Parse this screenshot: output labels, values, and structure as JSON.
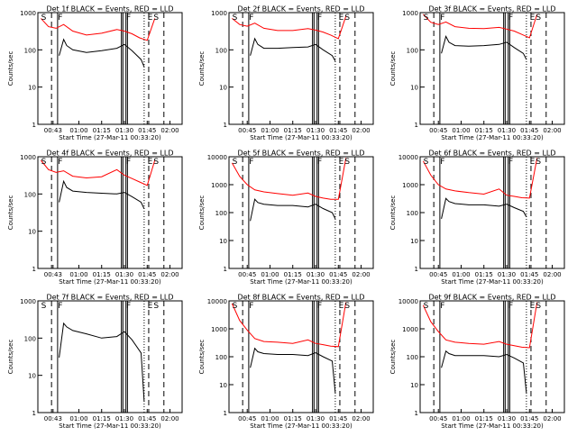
{
  "figure": {
    "ylabel": "Counts/sec",
    "xlabel": "Start Time (27-Mar-11 00:33:20)",
    "colors": {
      "events": "#000000",
      "lld": "#ff0000"
    }
  },
  "chart_data": [
    {
      "type": "line",
      "title": "Det 1f BLACK = Events, RED = LLD",
      "ylim": [
        1,
        1000
      ],
      "yscale": "log",
      "yticks": [
        "1",
        "10",
        "100",
        "1000"
      ],
      "xticks": [
        "00:43",
        "01:00",
        "01:15",
        "01:30",
        "01:45",
        "02:00"
      ],
      "markers": [
        "S",
        "F",
        "F",
        "E",
        "S"
      ],
      "series": [
        {
          "name": "BLACK",
          "x": [
            "00:47",
            "00:50",
            "00:52",
            "00:56",
            "01:05",
            "01:15",
            "01:25",
            "01:30",
            "01:35",
            "01:41",
            "01:43"
          ],
          "values": [
            70,
            190,
            130,
            100,
            85,
            95,
            110,
            140,
            95,
            55,
            35
          ]
        },
        {
          "name": "RED",
          "x": [
            "00:35",
            "00:40",
            "00:45",
            "00:50",
            "00:56",
            "01:05",
            "01:15",
            "01:25",
            "01:30",
            "01:35",
            "01:40",
            "01:45",
            "01:50"
          ],
          "values": [
            700,
            420,
            380,
            480,
            320,
            250,
            280,
            350,
            320,
            270,
            210,
            180,
            700
          ]
        }
      ]
    },
    {
      "type": "line",
      "title": "Det 2f BLACK = Events, RED = LLD",
      "ylim": [
        1,
        1000
      ],
      "yscale": "log",
      "yticks": [
        "1",
        "10",
        "100",
        "1000"
      ],
      "xticks": [
        "00:45",
        "01:00",
        "01:15",
        "01:30",
        "01:45",
        "02:00"
      ],
      "markers": [
        "S",
        "F",
        "F",
        "E",
        "S"
      ],
      "series": [
        {
          "name": "BLACK",
          "x": [
            "00:47",
            "00:50",
            "00:52",
            "00:56",
            "01:05",
            "01:15",
            "01:25",
            "01:30",
            "01:35",
            "01:41",
            "01:43"
          ],
          "values": [
            70,
            200,
            140,
            110,
            110,
            115,
            120,
            140,
            100,
            70,
            50
          ]
        },
        {
          "name": "RED",
          "x": [
            "00:35",
            "00:40",
            "00:45",
            "00:50",
            "00:56",
            "01:05",
            "01:15",
            "01:25",
            "01:30",
            "01:35",
            "01:40",
            "01:45",
            "01:50"
          ],
          "values": [
            700,
            480,
            430,
            520,
            380,
            330,
            330,
            370,
            340,
            300,
            250,
            200,
            800
          ]
        }
      ]
    },
    {
      "type": "line",
      "title": "Det 3f BLACK = Events, RED = LLD",
      "ylim": [
        1,
        1000
      ],
      "yscale": "log",
      "yticks": [
        "1",
        "10",
        "100",
        "1000"
      ],
      "xticks": [
        "00:45",
        "01:00",
        "01:15",
        "01:30",
        "01:45",
        "02:00"
      ],
      "markers": [
        "S",
        "F",
        "F",
        "E",
        "S"
      ],
      "series": [
        {
          "name": "BLACK",
          "x": [
            "00:47",
            "00:50",
            "00:52",
            "00:56",
            "01:05",
            "01:15",
            "01:25",
            "01:30",
            "01:35",
            "01:41",
            "01:43"
          ],
          "values": [
            80,
            230,
            160,
            130,
            125,
            130,
            140,
            160,
            115,
            80,
            55
          ]
        },
        {
          "name": "RED",
          "x": [
            "00:35",
            "00:40",
            "00:45",
            "00:50",
            "00:56",
            "01:05",
            "01:15",
            "01:25",
            "01:30",
            "01:35",
            "01:40",
            "01:45",
            "01:50"
          ],
          "values": [
            900,
            550,
            480,
            560,
            420,
            380,
            370,
            400,
            360,
            320,
            260,
            210,
            900
          ]
        }
      ]
    },
    {
      "type": "line",
      "title": "Det 4f BLACK = Events, RED = LLD",
      "ylim": [
        1,
        1000
      ],
      "yscale": "log",
      "yticks": [
        "1",
        "10",
        "100",
        "1000"
      ],
      "xticks": [
        "00:43",
        "01:00",
        "01:15",
        "01:30",
        "01:45",
        "02:00"
      ],
      "markers": [
        "S",
        "F",
        "F",
        "E",
        "S"
      ],
      "series": [
        {
          "name": "BLACK",
          "x": [
            "00:47",
            "00:50",
            "00:52",
            "00:56",
            "01:05",
            "01:15",
            "01:25",
            "01:30",
            "01:35",
            "01:41",
            "01:43"
          ],
          "values": [
            60,
            220,
            150,
            120,
            110,
            105,
            100,
            110,
            85,
            60,
            40
          ]
        },
        {
          "name": "RED",
          "x": [
            "00:35",
            "00:40",
            "00:45",
            "00:50",
            "00:56",
            "01:05",
            "01:15",
            "01:25",
            "01:30",
            "01:35",
            "01:40",
            "01:45",
            "01:50"
          ],
          "values": [
            800,
            450,
            380,
            420,
            300,
            270,
            290,
            450,
            320,
            260,
            210,
            170,
            800
          ]
        }
      ]
    },
    {
      "type": "line",
      "title": "Det 5f BLACK = Events, RED = LLD",
      "ylim": [
        1,
        10000
      ],
      "yscale": "log",
      "yticks": [
        "1",
        "10",
        "100",
        "1000",
        "10000"
      ],
      "xticks": [
        "00:45",
        "01:00",
        "01:15",
        "01:30",
        "01:45",
        "02:00"
      ],
      "markers": [
        "S",
        "F",
        "F",
        "E",
        "S"
      ],
      "series": [
        {
          "name": "BLACK",
          "x": [
            "00:47",
            "00:50",
            "00:52",
            "00:56",
            "01:05",
            "01:15",
            "01:25",
            "01:30",
            "01:35",
            "01:41",
            "01:43"
          ],
          "values": [
            50,
            300,
            230,
            200,
            180,
            180,
            160,
            200,
            140,
            100,
            60
          ]
        },
        {
          "name": "RED",
          "x": [
            "00:35",
            "00:40",
            "00:45",
            "00:50",
            "00:56",
            "01:05",
            "01:15",
            "01:25",
            "01:30",
            "01:35",
            "01:40",
            "01:45",
            "01:50"
          ],
          "values": [
            6000,
            2000,
            1000,
            650,
            550,
            480,
            420,
            500,
            380,
            330,
            300,
            300,
            9000
          ]
        }
      ]
    },
    {
      "type": "line",
      "title": "Det 6f BLACK = Events, RED = LLD",
      "ylim": [
        1,
        10000
      ],
      "yscale": "log",
      "yticks": [
        "1",
        "10",
        "100",
        "1000",
        "10000"
      ],
      "xticks": [
        "00:45",
        "01:00",
        "01:15",
        "01:30",
        "01:45",
        "02:00"
      ],
      "markers": [
        "S",
        "F",
        "F",
        "E",
        "S"
      ],
      "series": [
        {
          "name": "BLACK",
          "x": [
            "00:47",
            "00:50",
            "00:52",
            "00:56",
            "01:05",
            "01:15",
            "01:25",
            "01:30",
            "01:35",
            "01:41",
            "01:43"
          ],
          "values": [
            60,
            320,
            250,
            210,
            190,
            190,
            170,
            200,
            150,
            110,
            70
          ]
        },
        {
          "name": "RED",
          "x": [
            "00:35",
            "00:40",
            "00:45",
            "00:50",
            "00:56",
            "01:05",
            "01:15",
            "01:25",
            "01:30",
            "01:35",
            "01:40",
            "01:45",
            "01:50"
          ],
          "values": [
            7000,
            2200,
            1000,
            700,
            600,
            520,
            460,
            700,
            420,
            380,
            340,
            330,
            9000
          ]
        }
      ]
    },
    {
      "type": "line",
      "title": "Det 7f BLACK = Events, RED = LLD",
      "ylim": [
        1,
        1000
      ],
      "yscale": "log",
      "yticks": [
        "1",
        "10",
        "100",
        "1000"
      ],
      "xticks": [
        "00:43",
        "01:00",
        "01:15",
        "01:30",
        "01:45",
        "02:00"
      ],
      "markers": [
        "S",
        "F",
        "F",
        "E",
        "S"
      ],
      "series": [
        {
          "name": "BLACK",
          "x": [
            "00:47",
            "00:50",
            "00:52",
            "00:56",
            "01:05",
            "01:15",
            "01:25",
            "01:30",
            "01:35",
            "01:41",
            "01:43"
          ],
          "values": [
            30,
            250,
            200,
            160,
            130,
            100,
            110,
            150,
            90,
            40,
            2
          ]
        }
      ]
    },
    {
      "type": "line",
      "title": "Det 8f BLACK = Events, RED = LLD",
      "ylim": [
        1,
        10000
      ],
      "yscale": "log",
      "yticks": [
        "1",
        "10",
        "100",
        "1000",
        "10000"
      ],
      "xticks": [
        "00:45",
        "01:00",
        "01:15",
        "01:30",
        "01:45",
        "02:00"
      ],
      "markers": [
        "S",
        "F",
        "F",
        "E",
        "S"
      ],
      "series": [
        {
          "name": "BLACK",
          "x": [
            "00:47",
            "00:50",
            "00:52",
            "00:56",
            "01:05",
            "01:15",
            "01:25",
            "01:30",
            "01:35",
            "01:41",
            "01:43"
          ],
          "values": [
            40,
            200,
            150,
            130,
            120,
            120,
            110,
            140,
            100,
            70,
            5
          ]
        },
        {
          "name": "RED",
          "x": [
            "00:35",
            "00:40",
            "00:45",
            "00:50",
            "00:56",
            "01:05",
            "01:15",
            "01:25",
            "01:30",
            "01:35",
            "01:40",
            "01:45",
            "01:50"
          ],
          "values": [
            8000,
            2000,
            900,
            450,
            350,
            330,
            300,
            400,
            300,
            270,
            240,
            230,
            9000
          ]
        }
      ]
    },
    {
      "type": "line",
      "title": "Det 9f BLACK = Events, RED = LLD",
      "ylim": [
        1,
        10000
      ],
      "yscale": "log",
      "yticks": [
        "1",
        "10",
        "100",
        "1000",
        "10000"
      ],
      "xticks": [
        "00:45",
        "01:00",
        "01:15",
        "01:30",
        "01:45",
        "02:00"
      ],
      "markers": [
        "S",
        "F",
        "F",
        "E",
        "S"
      ],
      "series": [
        {
          "name": "BLACK",
          "x": [
            "00:47",
            "00:50",
            "00:52",
            "00:56",
            "01:05",
            "01:15",
            "01:25",
            "01:30",
            "01:35",
            "01:41",
            "01:43"
          ],
          "values": [
            40,
            160,
            130,
            110,
            110,
            110,
            100,
            120,
            90,
            60,
            5
          ]
        },
        {
          "name": "RED",
          "x": [
            "00:35",
            "00:40",
            "00:45",
            "00:50",
            "00:56",
            "01:05",
            "01:15",
            "01:25",
            "01:30",
            "01:35",
            "01:40",
            "01:45",
            "01:50"
          ],
          "values": [
            7000,
            1800,
            800,
            400,
            330,
            300,
            280,
            350,
            280,
            250,
            220,
            210,
            9000
          ]
        }
      ]
    }
  ]
}
